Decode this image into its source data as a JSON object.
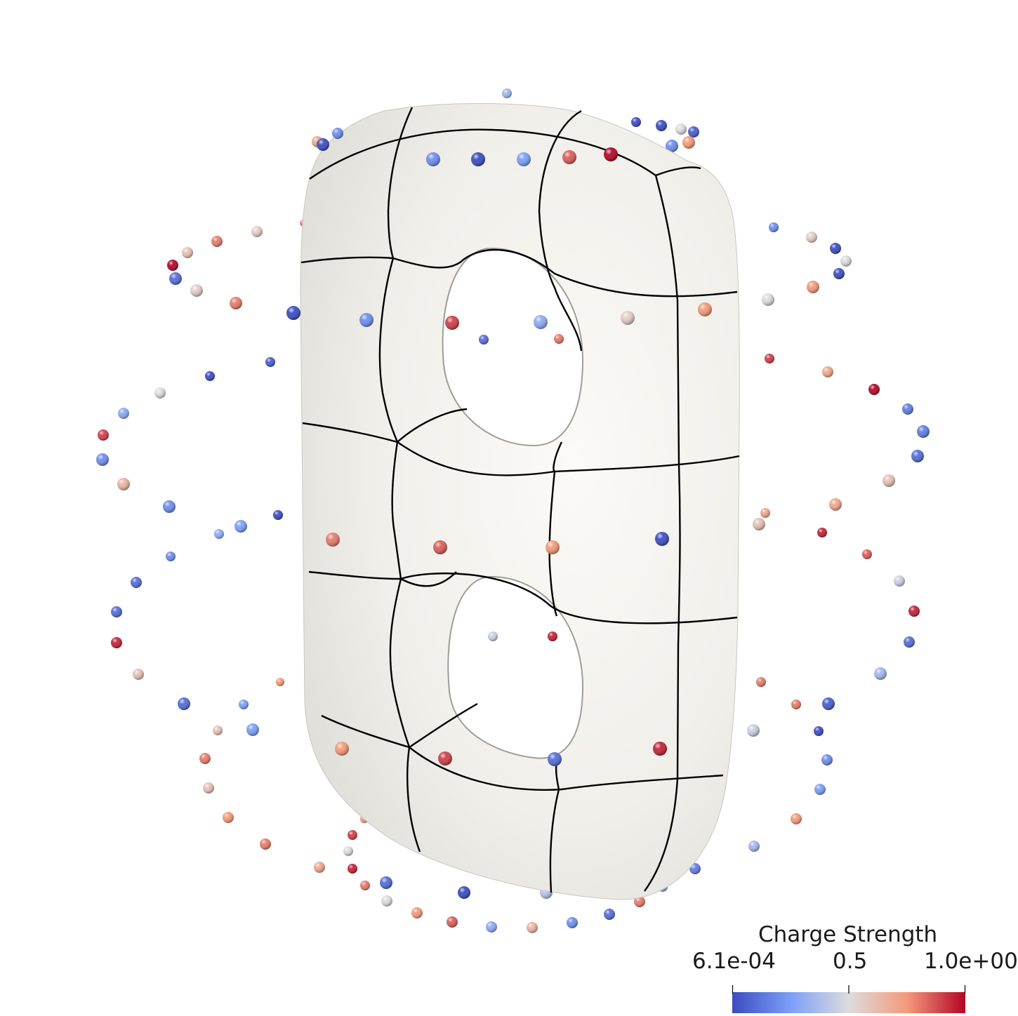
{
  "colorbar": {
    "title": "Charge Strength",
    "ticks": {
      "min": "6.1e-04",
      "mid": "0.5",
      "max": "1.0e+00"
    },
    "stops": [
      {
        "t": 0.0,
        "color": "#3b4cc0"
      },
      {
        "t": 0.25,
        "color": "#7b9ff9"
      },
      {
        "t": 0.5,
        "color": "#dddcdc"
      },
      {
        "t": 0.75,
        "color": "#f49a7b"
      },
      {
        "t": 1.0,
        "color": "#b40426"
      }
    ]
  },
  "surface": {
    "color": "#f2f1ec",
    "grid_color": "#000000"
  },
  "charges": [
    [
      722,
      133,
      0.35,
      7
    ],
    [
      460,
      206,
      0.0,
      9
    ],
    [
      481,
      190,
      0.2,
      8
    ],
    [
      511,
      183,
      0.3,
      7
    ],
    [
      452,
      202,
      0.7,
      8
    ],
    [
      481,
      213,
      0.75,
      9
    ],
    [
      515,
      218,
      0.75,
      9
    ],
    [
      561,
      223,
      1.0,
      10
    ],
    [
      617,
      227,
      0.2,
      10
    ],
    [
      681,
      227,
      0.0,
      10
    ],
    [
      746,
      227,
      0.25,
      10
    ],
    [
      811,
      224,
      0.85,
      10
    ],
    [
      870,
      220,
      1.0,
      10
    ],
    [
      906,
      174,
      0.0,
      7
    ],
    [
      942,
      179,
      0.0,
      8
    ],
    [
      970,
      184,
      0.5,
      8
    ],
    [
      988,
      188,
      0.05,
      8
    ],
    [
      981,
      203,
      0.75,
      9
    ],
    [
      957,
      208,
      0.2,
      9
    ],
    [
      919,
      215,
      0.7,
      9
    ],
    [
      366,
      330,
      0.55,
      8
    ],
    [
      309,
      344,
      0.8,
      8
    ],
    [
      267,
      360,
      0.6,
      8
    ],
    [
      246,
      378,
      1.0,
      8
    ],
    [
      250,
      397,
      0.1,
      9
    ],
    [
      280,
      414,
      0.55,
      9
    ],
    [
      336,
      432,
      0.8,
      9
    ],
    [
      418,
      446,
      0.0,
      10
    ],
    [
      522,
      456,
      0.2,
      10
    ],
    [
      644,
      460,
      0.9,
      10
    ],
    [
      770,
      459,
      0.3,
      10
    ],
    [
      894,
      453,
      0.55,
      10
    ],
    [
      1004,
      441,
      0.75,
      10
    ],
    [
      1094,
      427,
      0.5,
      9
    ],
    [
      1158,
      409,
      0.75,
      9
    ],
    [
      1195,
      390,
      0.0,
      8
    ],
    [
      1205,
      372,
      0.5,
      8
    ],
    [
      1190,
      354,
      0.0,
      8
    ],
    [
      1156,
      338,
      0.55,
      8
    ],
    [
      1102,
      324,
      0.2,
      7
    ],
    [
      1036,
      313,
      0.8,
      6
    ],
    [
      432,
      318,
      0.8,
      5
    ],
    [
      689,
      484,
      0.1,
      7
    ],
    [
      796,
      483,
      0.8,
      7
    ],
    [
      385,
      516,
      0.05,
      7
    ],
    [
      299,
      536,
      0.0,
      7
    ],
    [
      228,
      560,
      0.5,
      8
    ],
    [
      176,
      589,
      0.3,
      8
    ],
    [
      147,
      620,
      0.9,
      8
    ],
    [
      146,
      655,
      0.2,
      9
    ],
    [
      176,
      690,
      0.65,
      9
    ],
    [
      241,
      722,
      0.2,
      9
    ],
    [
      343,
      750,
      0.25,
      9
    ],
    [
      474,
      769,
      0.8,
      10
    ],
    [
      627,
      780,
      0.85,
      10
    ],
    [
      787,
      780,
      0.75,
      10
    ],
    [
      943,
      768,
      0.0,
      10
    ],
    [
      1081,
      747,
      0.6,
      9
    ],
    [
      1190,
      719,
      0.7,
      9
    ],
    [
      1266,
      685,
      0.6,
      9
    ],
    [
      1307,
      650,
      0.1,
      9
    ],
    [
      1315,
      615,
      0.15,
      9
    ],
    [
      1293,
      583,
      0.15,
      8
    ],
    [
      1245,
      555,
      1.0,
      8
    ],
    [
      1179,
      530,
      0.7,
      8
    ],
    [
      1096,
      511,
      0.9,
      7
    ],
    [
      396,
      734,
      0.0,
      7
    ],
    [
      312,
      761,
      0.3,
      7
    ],
    [
      1090,
      731,
      0.7,
      7
    ],
    [
      243,
      793,
      0.2,
      7
    ],
    [
      194,
      830,
      0.1,
      8
    ],
    [
      1171,
      759,
      0.95,
      7
    ],
    [
      1235,
      790,
      0.85,
      7
    ],
    [
      1281,
      828,
      0.45,
      8
    ],
    [
      166,
      872,
      0.1,
      8
    ],
    [
      166,
      916,
      0.95,
      8
    ],
    [
      197,
      961,
      0.6,
      8
    ],
    [
      262,
      1003,
      0.1,
      9
    ],
    [
      360,
      1040,
      0.25,
      9
    ],
    [
      487,
      1067,
      0.75,
      10
    ],
    [
      634,
      1081,
      0.9,
      10
    ],
    [
      790,
      1082,
      0.1,
      10
    ],
    [
      940,
      1067,
      0.95,
      10
    ],
    [
      1073,
      1041,
      0.45,
      9
    ],
    [
      1180,
      1003,
      0.05,
      9
    ],
    [
      1254,
      960,
      0.35,
      9
    ],
    [
      1295,
      915,
      0.1,
      8
    ],
    [
      1302,
      871,
      0.95,
      8
    ],
    [
      702,
      907,
      0.45,
      7
    ],
    [
      787,
      907,
      0.95,
      7
    ],
    [
      399,
      972,
      0.75,
      6
    ],
    [
      347,
      1004,
      0.25,
      7
    ],
    [
      1084,
      972,
      0.8,
      7
    ],
    [
      1134,
      1004,
      0.8,
      7
    ],
    [
      310,
      1041,
      0.6,
      7
    ],
    [
      292,
      1081,
      0.8,
      8
    ],
    [
      297,
      1123,
      0.6,
      8
    ],
    [
      325,
      1165,
      0.75,
      8
    ],
    [
      378,
      1203,
      0.8,
      8
    ],
    [
      455,
      1236,
      0.7,
      8
    ],
    [
      550,
      1258,
      0.1,
      9
    ],
    [
      661,
      1272,
      0.0,
      9
    ],
    [
      778,
      1272,
      0.4,
      9
    ],
    [
      889,
      1260,
      0.1,
      9
    ],
    [
      990,
      1238,
      0.15,
      8
    ],
    [
      1074,
      1206,
      0.35,
      8
    ],
    [
      1134,
      1167,
      0.75,
      8
    ],
    [
      1168,
      1125,
      0.25,
      8
    ],
    [
      1178,
      1083,
      0.2,
      8
    ],
    [
      1166,
      1042,
      0.0,
      7
    ],
    [
      519,
      1167,
      0.75,
      6
    ],
    [
      502,
      1190,
      0.9,
      7
    ],
    [
      496,
      1213,
      0.5,
      7
    ],
    [
      502,
      1238,
      0.95,
      7
    ],
    [
      520,
      1262,
      0.8,
      7
    ],
    [
      551,
      1284,
      0.5,
      8
    ],
    [
      594,
      1301,
      0.75,
      8
    ],
    [
      644,
      1314,
      0.85,
      8
    ],
    [
      700,
      1321,
      0.3,
      8
    ],
    [
      758,
      1322,
      0.65,
      8
    ],
    [
      815,
      1315,
      0.2,
      8
    ],
    [
      868,
      1303,
      0.1,
      8
    ],
    [
      911,
      1285,
      0.8,
      8
    ],
    [
      944,
      1264,
      0.3,
      7
    ],
    [
      967,
      1241,
      0.1,
      7
    ]
  ]
}
